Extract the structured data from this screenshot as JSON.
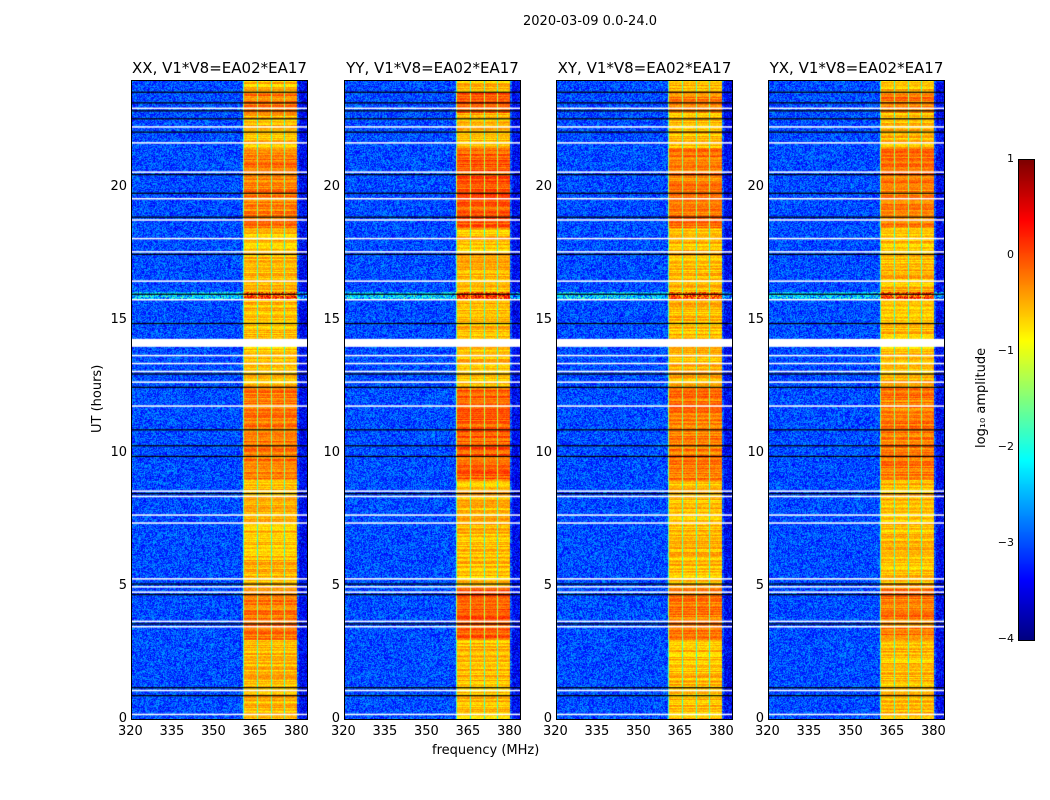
{
  "chart_data": {
    "type": "heatmap",
    "title": "2020-03-09 0.0-24.0",
    "xlabel": "frequency (MHz)",
    "ylabel": "UT (hours)",
    "xlim": [
      320,
      384
    ],
    "ylim": [
      0,
      24
    ],
    "xticks": [
      320,
      335,
      350,
      365,
      380
    ],
    "yticks": [
      0,
      5,
      10,
      15,
      20
    ],
    "panels": [
      {
        "title": "XX, V1*V8=EA02*EA17"
      },
      {
        "title": "YY, V1*V8=EA02*EA17"
      },
      {
        "title": "XY, V1*V8=EA02*EA17"
      },
      {
        "title": "YX, V1*V8=EA02*EA17"
      }
    ],
    "rfi_band_mhz": [
      360.5,
      380
    ],
    "band_level_log10": -0.8,
    "background_level_log10": -3,
    "flagged_gap_hours": [
      14.0,
      14.3
    ],
    "flagged_white_hours": [
      0.2,
      1.1,
      3.5,
      3.7,
      4.8,
      5.0,
      5.3,
      7.4,
      7.7,
      8.4,
      8.6,
      11.8,
      12.7,
      13.1,
      13.4,
      13.7,
      15.8,
      16.5,
      17.6,
      18.1,
      18.8,
      19.6,
      20.6,
      21.7,
      22.3,
      23.0
    ],
    "flagged_black_hours": [
      0.9,
      1.2,
      3.6,
      4.7,
      5.1,
      8.5,
      9.9,
      10.3,
      10.9,
      12.5,
      13.0,
      14.9,
      16.0,
      17.5,
      18.9,
      19.8,
      20.5,
      22.1,
      22.6,
      22.9,
      23.2,
      23.6
    ],
    "colorbar": {
      "label": "log₁₀ amplitude",
      "range": [
        -4,
        1
      ],
      "ticks": [
        "1",
        "0",
        "−1",
        "−2",
        "−3",
        "−4"
      ],
      "colormap": "jet"
    }
  }
}
